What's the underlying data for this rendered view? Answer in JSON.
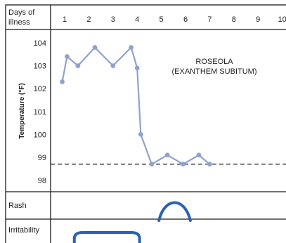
{
  "chart_data": {
    "type": "line",
    "title": "",
    "annotation_lines": [
      "ROSEOLA",
      "(EXANTHEM SUBITUM)"
    ],
    "header_label_lines": [
      "Days of",
      "illness"
    ],
    "day_ticks": [
      "1",
      "2",
      "3",
      "4",
      "5",
      "6",
      "7",
      "8",
      "9",
      "10"
    ],
    "ylabel": "Temperature (°F)",
    "y_ticks": [
      "104",
      "103",
      "102",
      "101",
      "100",
      "99",
      "98"
    ],
    "ylim": [
      97.6,
      104.4
    ],
    "grid": false,
    "reference_line": {
      "y": 98.7,
      "style": "dashed"
    },
    "series": [
      {
        "x": [
          0.9,
          1.1,
          1.55,
          2.25,
          3.0,
          3.75,
          4.0,
          4.15,
          4.6,
          5.25,
          5.9,
          6.55,
          7.0
        ],
        "y": [
          102.3,
          103.4,
          103.0,
          103.8,
          103.0,
          103.8,
          102.9,
          100.0,
          98.7,
          99.1,
          98.7,
          99.1,
          98.7
        ]
      }
    ],
    "rows": [
      {
        "label": "Rash",
        "span_days": [
          4.9,
          6.2
        ]
      },
      {
        "label": "Irritability",
        "span_days": [
          1.4,
          4.1
        ]
      }
    ],
    "colors": {
      "line": "#8fa3cc",
      "marker": "#8fa3cc",
      "bands": "#2e62b0",
      "grid": "#1a1a1a"
    }
  }
}
